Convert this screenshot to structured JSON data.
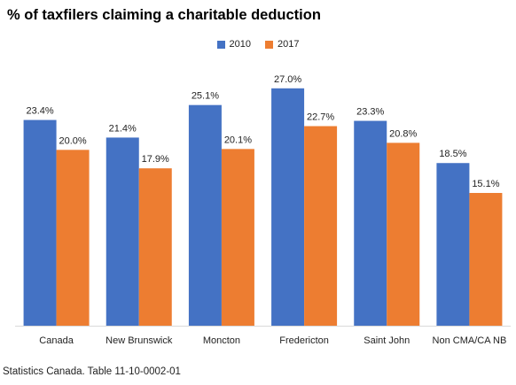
{
  "chart_data": {
    "type": "bar",
    "title": "% of taxfilers claiming a charitable deduction",
    "categories": [
      "Canada",
      "New Brunswick",
      "Moncton",
      "Fredericton",
      "Saint John",
      "Non CMA/CA NB"
    ],
    "series": [
      {
        "name": "2010",
        "values": [
          23.4,
          21.4,
          25.1,
          27.0,
          23.3,
          18.5
        ],
        "color": "#4472C4",
        "labels": [
          "23.4%",
          "21.4%",
          "25.1%",
          "27.0%",
          "23.3%",
          "18.5%"
        ]
      },
      {
        "name": "2017",
        "values": [
          20.0,
          17.9,
          20.1,
          22.7,
          20.8,
          15.1
        ],
        "color": "#ED7D31",
        "labels": [
          "20.0%",
          "17.9%",
          "20.1%",
          "22.7%",
          "20.8%",
          "15.1%"
        ]
      }
    ],
    "ylim": [
      0,
      30
    ],
    "grid": false,
    "legend_position": "top-center",
    "source": "Statistics Canada. Table 11-10-0002-01"
  }
}
